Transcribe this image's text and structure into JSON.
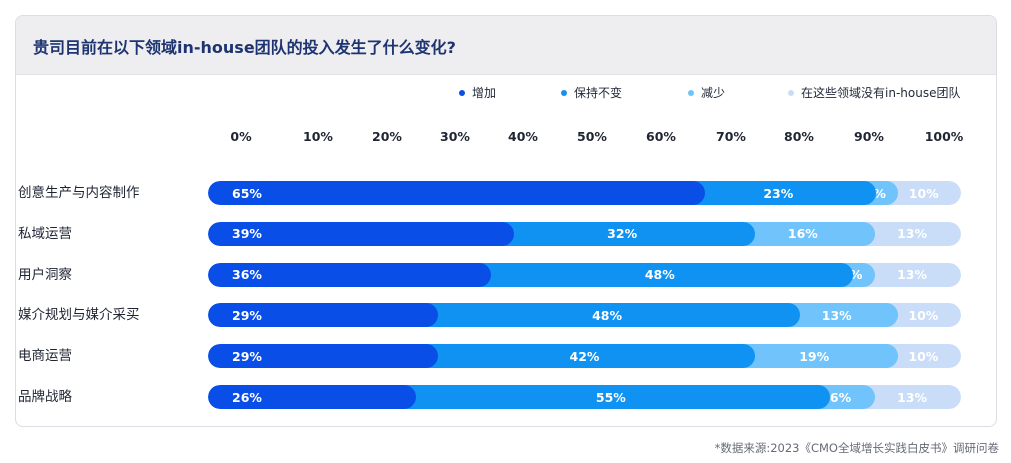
{
  "header": {
    "title": "贵司目前在以下领域in-house团队的投入发生了什么变化?"
  },
  "source_note": "*数据来源:2023《CMO全域增长实践白皮书》调研问卷",
  "chart_data": {
    "type": "bar",
    "orientation": "horizontal",
    "stacked": "percent",
    "title": "贵司目前在以下领域in-house团队的投入发生了什么变化?",
    "xlabel": "",
    "ylabel": "",
    "xlim": [
      0,
      100
    ],
    "x_ticks": [
      "0%",
      "10%",
      "20%",
      "30%",
      "40%",
      "50%",
      "60%",
      "70%",
      "80%",
      "90%",
      "100%"
    ],
    "legend_position": "top-right",
    "grid": false,
    "categories": [
      "创意生产与内容制作",
      "私域运营",
      "用户洞察",
      "媒介规划与媒介采买",
      "电商运营",
      "品牌战略"
    ],
    "series": [
      {
        "name": "增加",
        "color": "#0a4ee8",
        "label_color": "#ffffff",
        "values": [
          65,
          39,
          36,
          29,
          29,
          26
        ]
      },
      {
        "name": "保持不变",
        "color": "#1092f2",
        "label_color": "#ffffff",
        "values": [
          23,
          32,
          48,
          48,
          42,
          55
        ]
      },
      {
        "name": "减少",
        "color": "#70c3fb",
        "label_color": "#ffffff",
        "values": [
          3,
          16,
          3,
          13,
          19,
          6
        ]
      },
      {
        "name": "在这些领域没有in-house团队",
        "color": "#c9ddf9",
        "label_color": "#ffffff",
        "values": [
          10,
          13,
          13,
          10,
          10,
          13
        ]
      }
    ]
  }
}
